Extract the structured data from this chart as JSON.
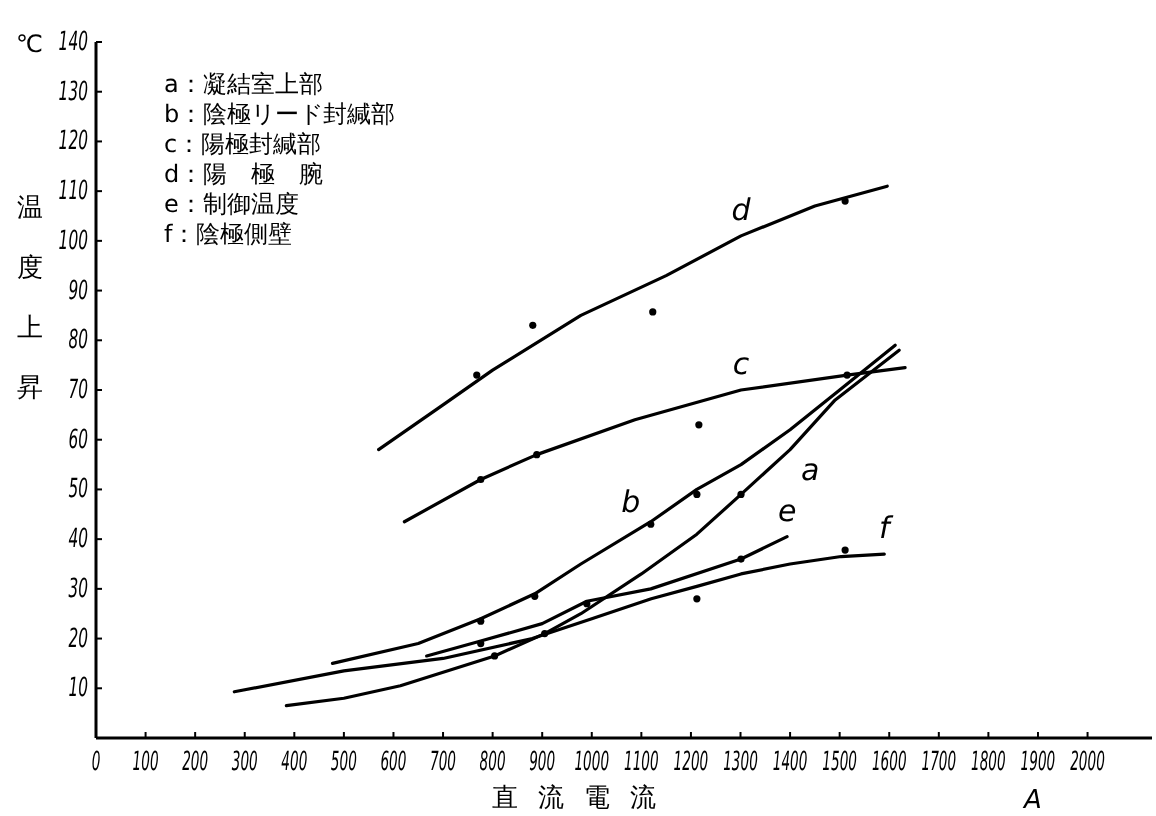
{
  "chart_data": {
    "type": "line",
    "xlabel": "直流電流",
    "ylabel": "温度上昇",
    "annotations": [
      "a：凝結室上部",
      "b：陰極リード封緘部",
      "c：陽極封緘部",
      "d：陽　極　腕",
      "e：制御温度",
      "f：陰極側壁",
      "℃",
      "A",
      {
        "text": "a",
        "x": 1400,
        "y": 58
      },
      {
        "text": "b",
        "x": 1119,
        "y": 43.5
      },
      {
        "text": "c",
        "x": 1301,
        "y": 70
      },
      {
        "text": "d",
        "x": 1301,
        "y": 101
      },
      {
        "text": "e",
        "x": 1394,
        "y": 40.5
      },
      {
        "text": "f",
        "x": 1590,
        "y": 37
      }
    ],
    "xlim": [
      0,
      2130
    ],
    "ylim": [
      0,
      140
    ],
    "xticks": [
      0,
      100,
      200,
      300,
      400,
      500,
      600,
      700,
      800,
      900,
      1000,
      1100,
      1200,
      1300,
      1400,
      1500,
      1600,
      1700,
      1800,
      1900,
      2000
    ],
    "yticks": [
      10,
      20,
      30,
      40,
      50,
      60,
      70,
      80,
      90,
      100,
      110,
      120,
      130,
      140
    ],
    "grid": false,
    "marker": "none",
    "line_style": "solid",
    "series": [
      {
        "color": "#000000",
        "x": [
          384,
          500,
          614,
          804,
          905,
          978,
          1100,
          1212,
          1301,
          1400,
          1491,
          1620
        ],
        "values": [
          6.5,
          8,
          10.5,
          16.5,
          21,
          25,
          33,
          41,
          49,
          58,
          68,
          78
        ]
      },
      {
        "color": "#000000",
        "x": [
          477,
          650,
          776,
          885,
          978,
          1119,
          1212,
          1301,
          1400,
          1500,
          1612
        ],
        "values": [
          15,
          19,
          24,
          29,
          35,
          43.5,
          50,
          55,
          62,
          70,
          79
        ]
      },
      {
        "color": "#000000",
        "x": [
          622,
          776,
          889,
          1087,
          1301,
          1515,
          1632
        ],
        "values": [
          43.5,
          52,
          57,
          64,
          70,
          73,
          74.5
        ]
      },
      {
        "color": "#000000",
        "x": [
          570,
          700,
          800,
          978,
          1150,
          1301,
          1450,
          1596
        ],
        "values": [
          58,
          67,
          74,
          85,
          93,
          101,
          107,
          111
        ]
      },
      {
        "color": "#000000",
        "x": [
          667,
          776,
          900,
          990,
          1119,
          1301,
          1394
        ],
        "values": [
          16.5,
          19.5,
          23,
          27.5,
          30,
          36,
          40.5
        ]
      },
      {
        "color": "#000000",
        "x": [
          279,
          500,
          700,
          880,
          1000,
          1120,
          1212,
          1301,
          1400,
          1503,
          1590
        ],
        "values": [
          9.3,
          13.5,
          16,
          20,
          24,
          28,
          30.5,
          33,
          35,
          36.5,
          37
        ]
      },
      {
        "type": "scatter",
        "color": "#000000",
        "marker": "circle",
        "x": [
          768,
          881,
          1123,
          1511,
          776,
          889,
          1216,
          1515,
          776,
          885,
          1119,
          1212,
          804,
          905,
          1301,
          776,
          990,
          1301,
          1212,
          1511
        ],
        "values": [
          73,
          83,
          85.7,
          108,
          52,
          57,
          63,
          73,
          23.5,
          28.5,
          43,
          49,
          16.5,
          21,
          49,
          19,
          27,
          36,
          28,
          37.8
        ]
      }
    ]
  }
}
